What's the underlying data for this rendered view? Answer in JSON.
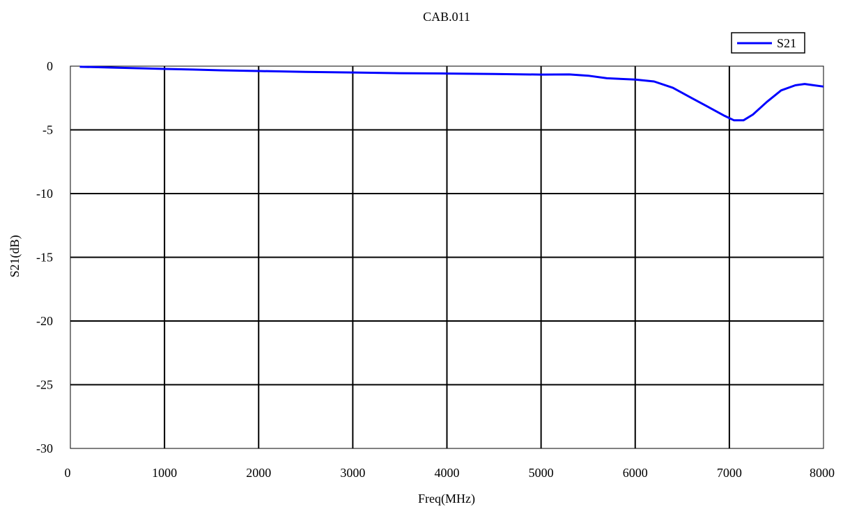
{
  "chart_data": {
    "type": "line",
    "title": "CAB.011",
    "xlabel": "Freq(MHz)",
    "ylabel": "S21(dB)",
    "xlim": [
      0,
      8000
    ],
    "ylim": [
      -30,
      0
    ],
    "x_ticks": [
      0,
      1000,
      2000,
      3000,
      4000,
      5000,
      6000,
      7000,
      8000
    ],
    "y_ticks": [
      0,
      -5,
      -10,
      -15,
      -20,
      -25,
      -30
    ],
    "x_tick_labels": [
      "0",
      "1000",
      "2000",
      "3000",
      "4000",
      "5000",
      "6000",
      "7000",
      "8000"
    ],
    "y_tick_labels": [
      "0",
      "-5",
      "-10",
      "-15",
      "-20",
      "-25",
      "-30"
    ],
    "grid": true,
    "legend_position": "top-right",
    "colors": {
      "series": "#0000ff",
      "grid": "#000000",
      "background": "#ffffff"
    },
    "series": [
      {
        "name": "S21",
        "x": [
          100,
          300,
          500,
          800,
          1000,
          1300,
          1600,
          2000,
          2500,
          3000,
          3500,
          4000,
          4500,
          5000,
          5300,
          5500,
          5700,
          6000,
          6200,
          6400,
          6600,
          6800,
          6950,
          7050,
          7150,
          7250,
          7400,
          7550,
          7700,
          7800,
          7900,
          8000
        ],
        "y": [
          -0.05,
          -0.08,
          -0.12,
          -0.18,
          -0.22,
          -0.27,
          -0.33,
          -0.38,
          -0.45,
          -0.5,
          -0.55,
          -0.58,
          -0.62,
          -0.66,
          -0.65,
          -0.75,
          -0.95,
          -1.05,
          -1.2,
          -1.7,
          -2.5,
          -3.3,
          -3.9,
          -4.25,
          -4.25,
          -3.8,
          -2.8,
          -1.9,
          -1.5,
          -1.4,
          -1.5,
          -1.6
        ]
      }
    ]
  }
}
